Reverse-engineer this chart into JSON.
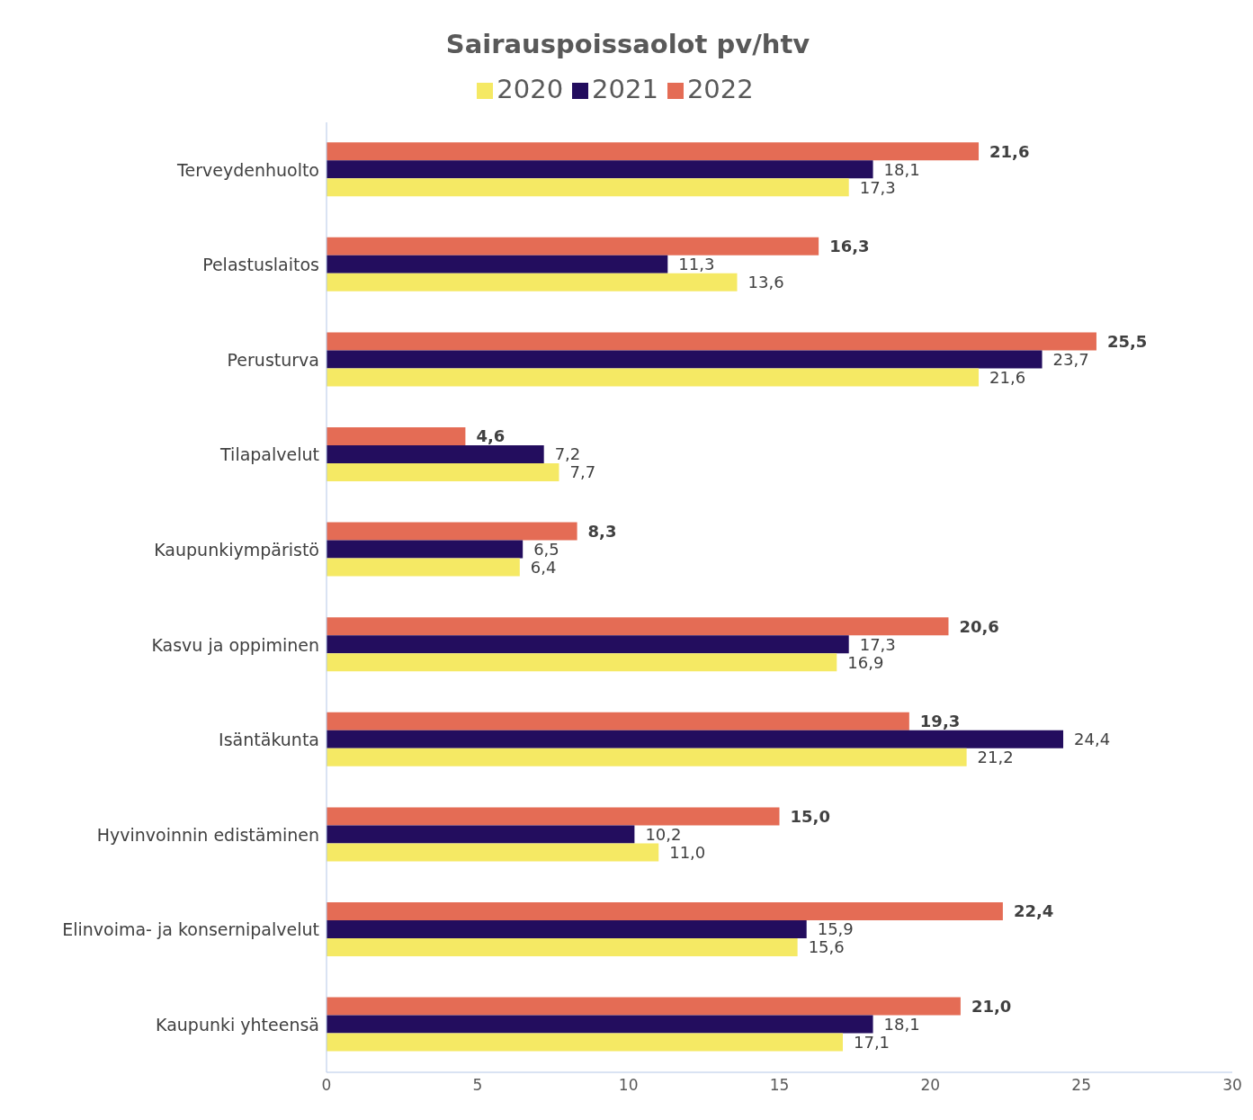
{
  "chart_data": {
    "type": "bar",
    "orientation": "horizontal",
    "title": "Sairauspoissaolot pv/htv",
    "categories": [
      "Terveydenhuolto",
      "Pelastuslaitos",
      "Perusturva",
      "Tilapalvelut",
      "Kaupunkiympäristö",
      "Kasvu ja oppiminen",
      "Isäntäkunta",
      "Hyvinvoinnin edistäminen",
      "Elinvoima- ja konsernipalvelut",
      "Kaupunki yhteensä"
    ],
    "series": [
      {
        "name": "2022",
        "color": "#e46c55",
        "values": [
          21.6,
          16.3,
          25.5,
          4.6,
          8.3,
          20.6,
          19.3,
          15.0,
          22.4,
          21.0
        ],
        "value_labels": [
          "21,6",
          "16,3",
          "25,5",
          "4,6",
          "8,3",
          "20,6",
          "19,3",
          "15,0",
          "22,4",
          "21,0"
        ]
      },
      {
        "name": "2021",
        "color": "#230d5e",
        "values": [
          18.1,
          11.3,
          23.7,
          7.2,
          6.5,
          17.3,
          24.4,
          10.2,
          15.9,
          18.1
        ],
        "value_labels": [
          "18,1",
          "11,3",
          "23,7",
          "7,2",
          "6,5",
          "17,3",
          "24,4",
          "10,2",
          "15,9",
          "18,1"
        ]
      },
      {
        "name": "2020",
        "color": "#f5e964",
        "values": [
          17.3,
          13.6,
          21.6,
          7.7,
          6.4,
          16.9,
          21.2,
          11.0,
          15.6,
          17.1
        ],
        "value_labels": [
          "17,3",
          "13,6",
          "21,6",
          "7,7",
          "6,4",
          "16,9",
          "21,2",
          "11,0",
          "15,6",
          "17,1"
        ]
      }
    ],
    "xlim": [
      0,
      30
    ],
    "xticks": [
      0,
      5,
      10,
      15,
      20,
      25,
      30
    ],
    "legend": "top",
    "grid": false
  }
}
